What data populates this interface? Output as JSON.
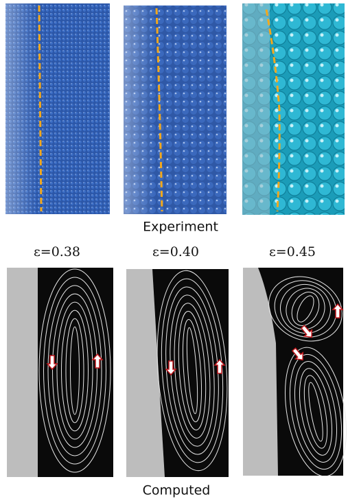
{
  "experiment_label": "Experiment",
  "computed_label": "Computed",
  "panels": [
    {
      "label": "ε=0.38"
    },
    {
      "label": "ε=0.40"
    },
    {
      "label": "ε=0.45"
    }
  ]
}
